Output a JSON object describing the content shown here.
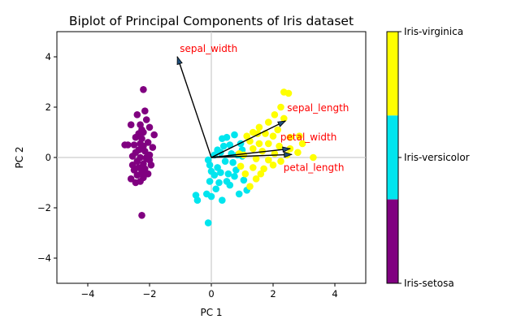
{
  "chart_data": {
    "type": "scatter",
    "title": "Biplot of Principal Components of Iris dataset",
    "xlabel": "PC 1",
    "ylabel": "PC 2",
    "xlim": [
      -5,
      5
    ],
    "ylim": [
      -5,
      5
    ],
    "xticks": [
      "−4",
      "−2",
      "0",
      "2",
      "4"
    ],
    "xtick_values": [
      -4,
      -2,
      0,
      2,
      4
    ],
    "yticks": [
      "−4",
      "−2",
      "0",
      "2",
      "4"
    ],
    "ytick_values": [
      -4,
      -2,
      0,
      2,
      4
    ],
    "grid": false,
    "reference_lines": [
      0,
      0
    ],
    "series": [
      {
        "name": "Iris-setosa",
        "color": "#800080",
        "points": [
          [
            -2.2,
            2.7
          ],
          [
            -2.4,
            1.7
          ],
          [
            -2.15,
            1.85
          ],
          [
            -2.6,
            1.3
          ],
          [
            -2.3,
            1.3
          ],
          [
            -2.0,
            1.2
          ],
          [
            -2.2,
            1.0
          ],
          [
            -2.1,
            1.5
          ],
          [
            -2.45,
            0.8
          ],
          [
            -2.25,
            0.75
          ],
          [
            -2.05,
            0.6
          ],
          [
            -2.3,
            0.55
          ],
          [
            -2.5,
            0.5
          ],
          [
            -2.2,
            0.45
          ],
          [
            -1.9,
            0.4
          ],
          [
            -2.7,
            0.5
          ],
          [
            -2.35,
            0.3
          ],
          [
            -2.15,
            0.25
          ],
          [
            -2.0,
            0.1
          ],
          [
            -2.55,
            0.05
          ],
          [
            -2.3,
            0.0
          ],
          [
            -2.1,
            -0.05
          ],
          [
            -2.4,
            -0.15
          ],
          [
            -2.2,
            -0.25
          ],
          [
            -1.95,
            -0.3
          ],
          [
            -2.35,
            -0.4
          ],
          [
            -2.15,
            -0.45
          ],
          [
            -2.5,
            -0.5
          ],
          [
            -2.25,
            -0.6
          ],
          [
            -2.05,
            -0.65
          ],
          [
            -2.4,
            -0.7
          ],
          [
            -2.2,
            -0.8
          ],
          [
            -2.6,
            -0.85
          ],
          [
            -2.3,
            -0.95
          ],
          [
            -2.45,
            -1.0
          ],
          [
            -2.8,
            0.5
          ],
          [
            -1.85,
            0.9
          ],
          [
            -2.35,
            0.95
          ],
          [
            -2.25,
            -2.3
          ],
          [
            -2.1,
            0.0
          ],
          [
            -2.45,
            0.2
          ],
          [
            -2.25,
            1.1
          ],
          [
            -2.0,
            -0.1
          ],
          [
            -2.55,
            -0.3
          ]
        ]
      },
      {
        "name": "Iris-versicolor",
        "color": "#00e5ee",
        "points": [
          [
            0.5,
            0.8
          ],
          [
            0.75,
            0.9
          ],
          [
            0.35,
            0.75
          ],
          [
            0.95,
            0.55
          ],
          [
            0.6,
            0.5
          ],
          [
            0.4,
            0.45
          ],
          [
            0.2,
            0.3
          ],
          [
            0.1,
            0.1
          ],
          [
            -0.05,
            -0.3
          ],
          [
            0.2,
            -0.4
          ],
          [
            0.45,
            -0.15
          ],
          [
            0.7,
            -0.2
          ],
          [
            0.85,
            0.1
          ],
          [
            1.0,
            0.05
          ],
          [
            0.3,
            -0.6
          ],
          [
            0.55,
            -0.65
          ],
          [
            0.8,
            -0.5
          ],
          [
            0.1,
            -0.7
          ],
          [
            -0.05,
            -0.95
          ],
          [
            0.25,
            -1.0
          ],
          [
            0.6,
            -1.1
          ],
          [
            -0.5,
            -1.5
          ],
          [
            -0.45,
            -1.7
          ],
          [
            -0.15,
            -1.45
          ],
          [
            0.0,
            -1.55
          ],
          [
            0.35,
            -1.7
          ],
          [
            0.9,
            -1.45
          ],
          [
            1.15,
            -1.3
          ],
          [
            -0.1,
            -2.6
          ],
          [
            1.0,
            0.3
          ],
          [
            0.75,
            -0.75
          ],
          [
            0.5,
            -0.95
          ],
          [
            0.15,
            -1.25
          ],
          [
            1.05,
            -0.9
          ],
          [
            0.65,
            0.15
          ],
          [
            0.3,
            0.2
          ],
          [
            0.0,
            -0.55
          ],
          [
            -0.1,
            -0.1
          ]
        ]
      },
      {
        "name": "Iris-virginica",
        "color": "#ffff00",
        "points": [
          [
            2.35,
            2.6
          ],
          [
            2.5,
            2.55
          ],
          [
            2.25,
            2.0
          ],
          [
            2.05,
            1.7
          ],
          [
            1.85,
            1.4
          ],
          [
            1.55,
            1.2
          ],
          [
            1.35,
            1.0
          ],
          [
            1.75,
            0.95
          ],
          [
            2.0,
            0.85
          ],
          [
            2.55,
            0.8
          ],
          [
            2.85,
            0.85
          ],
          [
            1.25,
            0.65
          ],
          [
            1.55,
            0.55
          ],
          [
            1.85,
            0.55
          ],
          [
            2.2,
            0.45
          ],
          [
            2.55,
            0.35
          ],
          [
            2.95,
            0.55
          ],
          [
            1.35,
            0.35
          ],
          [
            1.65,
            0.25
          ],
          [
            2.05,
            0.15
          ],
          [
            2.45,
            0.1
          ],
          [
            2.8,
            0.2
          ],
          [
            3.3,
            0.0
          ],
          [
            1.05,
            0.1
          ],
          [
            1.45,
            -0.05
          ],
          [
            1.85,
            -0.1
          ],
          [
            2.25,
            -0.15
          ],
          [
            0.95,
            -0.35
          ],
          [
            1.35,
            -0.4
          ],
          [
            1.1,
            -0.65
          ],
          [
            1.45,
            -0.85
          ],
          [
            1.25,
            -1.15
          ],
          [
            1.7,
            -0.45
          ],
          [
            2.0,
            -0.3
          ],
          [
            2.35,
            1.55
          ],
          [
            1.15,
            0.85
          ],
          [
            1.5,
            0.95
          ],
          [
            2.15,
            1.1
          ],
          [
            0.9,
            0.15
          ],
          [
            1.6,
            -0.65
          ]
        ]
      }
    ],
    "vectors": [
      {
        "label": "sepal_length",
        "x": 2.4,
        "y": 1.45
      },
      {
        "label": "sepal_width",
        "x": -1.1,
        "y": 4.0
      },
      {
        "label": "petal_width",
        "x": 2.55,
        "y": 0.35
      },
      {
        "label": "petal_length",
        "x": 2.6,
        "y": 0.12
      }
    ],
    "vector_label_color": "#ff0000",
    "colorbar": {
      "labels": [
        "Iris-virginica",
        "Iris-versicolor",
        "Iris-setosa"
      ],
      "colors": [
        "#ffff00",
        "#00e5ee",
        "#800080"
      ]
    }
  }
}
